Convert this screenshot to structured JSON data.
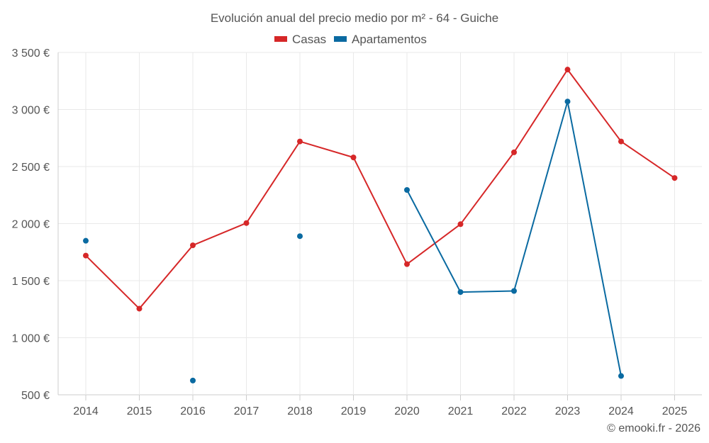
{
  "chart_data": {
    "type": "line",
    "title": "Evolución anual del precio medio por m² - 64 - Guiche",
    "categories": [
      "2014",
      "2015",
      "2016",
      "2017",
      "2018",
      "2019",
      "2020",
      "2021",
      "2022",
      "2023",
      "2024",
      "2025"
    ],
    "y_ticks": [
      "500 €",
      "1 000 €",
      "1 500 €",
      "2 000 €",
      "2 500 €",
      "3 000 €",
      "3 500 €"
    ],
    "y_tick_values": [
      500,
      1000,
      1500,
      2000,
      2500,
      3000,
      3500
    ],
    "ylim": [
      500,
      3500
    ],
    "grid": true,
    "legend_position": "top-center",
    "series": [
      {
        "name": "Casas",
        "color": "#d62728",
        "values": [
          1720,
          1255,
          1810,
          2005,
          2720,
          2580,
          1645,
          1995,
          2625,
          3350,
          2720,
          2400
        ]
      },
      {
        "name": "Apartamentos",
        "color": "#0a6aa1",
        "values": [
          1850,
          null,
          625,
          null,
          1890,
          null,
          2295,
          1400,
          1410,
          3070,
          665,
          null
        ]
      }
    ]
  },
  "credit": "© emooki.fr - 2026"
}
